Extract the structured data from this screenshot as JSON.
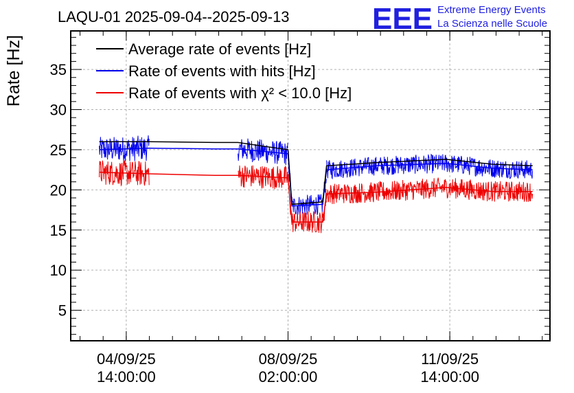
{
  "header": {
    "title": "LAQU-01 2025-09-04--2025-09-13",
    "logo_text": "EEE",
    "logo_line1": "Extreme Energy Events",
    "logo_line2": "La Scienza nelle Scuole"
  },
  "colors": {
    "average": "#000000",
    "hits": "#0000ee",
    "chi2": "#ee0000",
    "logo": "#2020e0",
    "grid": "#b0b0b0"
  },
  "chart_data": {
    "type": "line",
    "ylabel": "Rate [Hz]",
    "xlabel": "",
    "ylim": [
      1.2,
      39.8
    ],
    "xlim": [
      "2025-09-03 09:10",
      "2025-09-13 18:00"
    ],
    "grid": true,
    "legend_position": "top-left",
    "yticks": [
      5,
      10,
      15,
      20,
      25,
      30,
      35
    ],
    "xticks": [
      {
        "date": "04/09/25",
        "time": "14:00:00",
        "at": "2025-09-04 14:00"
      },
      {
        "date": "08/09/25",
        "time": "02:00:00",
        "at": "2025-09-08 02:00"
      },
      {
        "date": "11/09/25",
        "time": "14:00:00",
        "at": "2025-09-11 14:00"
      }
    ],
    "series": [
      {
        "name": "Average rate of events [Hz]",
        "key": "average",
        "points": [
          [
            "2025-09-04 00:00",
            26.0
          ],
          [
            "2025-09-05 02:00",
            26.0
          ],
          [
            "2025-09-06 12:00",
            25.9
          ],
          [
            "2025-09-07 00:00",
            25.9
          ],
          [
            "2025-09-08 02:00",
            25.0
          ],
          [
            "2025-09-08 04:00",
            18.2
          ],
          [
            "2025-09-08 20:00",
            18.5
          ],
          [
            "2025-09-08 22:00",
            23.0
          ],
          [
            "2025-09-10 00:00",
            23.4
          ],
          [
            "2025-09-11 12:00",
            23.8
          ],
          [
            "2025-09-12 12:00",
            23.2
          ],
          [
            "2025-09-13 09:00",
            23.0
          ]
        ],
        "noise_segments": [
          {
            "from": "2025-09-04 00:00",
            "to": "2025-09-05 02:00",
            "mean": 26.0,
            "spread": 1.4
          },
          {
            "from": "2025-09-07 00:00",
            "to": "2025-09-08 02:00",
            "mean": 25.9,
            "spread": 1.4
          },
          {
            "from": "2025-09-08 02:00",
            "to": "2025-09-08 22:00",
            "mean": 18.4,
            "spread": 1.2
          },
          {
            "from": "2025-09-08 22:00",
            "to": "2025-09-13 09:00",
            "mean": 23.3,
            "spread": 1.1
          }
        ]
      },
      {
        "name": "Rate of events with hits [Hz]",
        "key": "hits",
        "points": [
          [
            "2025-09-04 00:00",
            25.0
          ],
          [
            "2025-09-05 02:00",
            25.2
          ],
          [
            "2025-09-06 12:00",
            25.1
          ],
          [
            "2025-09-07 00:00",
            25.1
          ],
          [
            "2025-09-08 02:00",
            24.5
          ],
          [
            "2025-09-08 04:00",
            18.0
          ],
          [
            "2025-09-08 20:00",
            18.2
          ],
          [
            "2025-09-08 22:00",
            22.5
          ],
          [
            "2025-09-10 00:00",
            23.0
          ],
          [
            "2025-09-11 12:00",
            23.3
          ],
          [
            "2025-09-12 12:00",
            22.7
          ],
          [
            "2025-09-13 09:00",
            22.5
          ]
        ],
        "noise_segments": [
          {
            "from": "2025-09-04 00:00",
            "to": "2025-09-05 02:00",
            "mean": 25.1,
            "spread": 1.6
          },
          {
            "from": "2025-09-07 00:00",
            "to": "2025-09-08 02:00",
            "mean": 25.1,
            "spread": 1.5
          },
          {
            "from": "2025-09-08 02:00",
            "to": "2025-09-08 22:00",
            "mean": 18.0,
            "spread": 1.3
          },
          {
            "from": "2025-09-08 22:00",
            "to": "2025-09-13 09:00",
            "mean": 22.9,
            "spread": 1.2
          }
        ]
      },
      {
        "name": "Rate of events with χ² < 10.0 [Hz]",
        "key": "chi2",
        "points": [
          [
            "2025-09-04 00:00",
            22.2
          ],
          [
            "2025-09-05 02:00",
            22.0
          ],
          [
            "2025-09-06 12:00",
            21.8
          ],
          [
            "2025-09-07 00:00",
            21.8
          ],
          [
            "2025-09-08 02:00",
            21.5
          ],
          [
            "2025-09-08 04:00",
            16.0
          ],
          [
            "2025-09-08 20:00",
            16.0
          ],
          [
            "2025-09-08 22:00",
            19.5
          ],
          [
            "2025-09-10 00:00",
            19.7
          ],
          [
            "2025-09-11 12:00",
            20.3
          ],
          [
            "2025-09-12 12:00",
            19.8
          ],
          [
            "2025-09-13 09:00",
            19.8
          ]
        ],
        "noise_segments": [
          {
            "from": "2025-09-04 00:00",
            "to": "2025-09-05 02:00",
            "mean": 22.0,
            "spread": 1.6
          },
          {
            "from": "2025-09-07 00:00",
            "to": "2025-09-08 02:00",
            "mean": 21.9,
            "spread": 1.5
          },
          {
            "from": "2025-09-08 02:00",
            "to": "2025-09-08 22:00",
            "mean": 16.0,
            "spread": 1.4
          },
          {
            "from": "2025-09-08 22:00",
            "to": "2025-09-13 09:00",
            "mean": 19.9,
            "spread": 1.3
          }
        ]
      }
    ]
  }
}
